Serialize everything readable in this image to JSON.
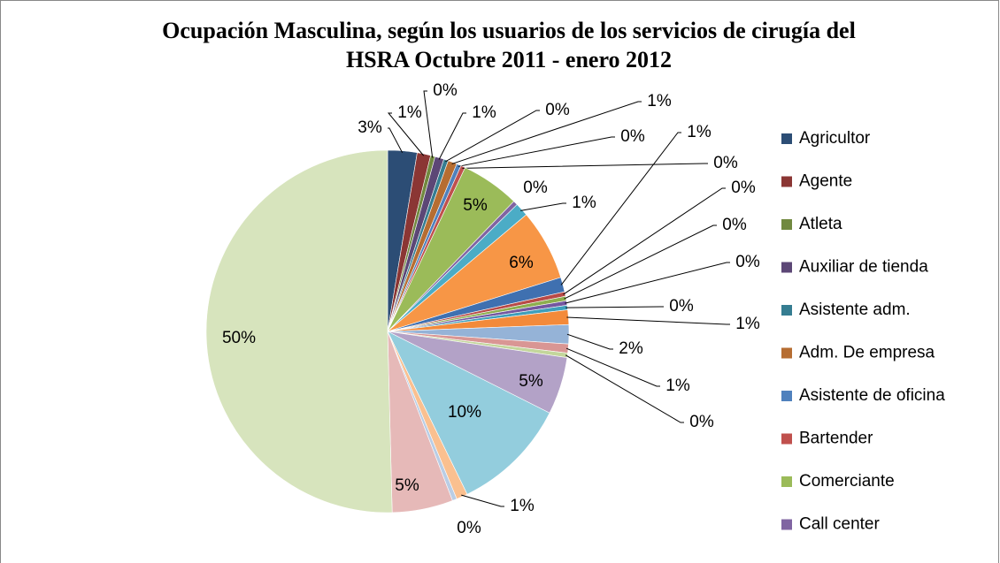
{
  "chart_data": {
    "type": "pie",
    "title": "Ocupación Masculina, según los usuarios de los servicios de cirugía del HSRA Octubre 2011 - enero 2012",
    "categories": [
      "Agricultor",
      "Agente",
      "Atleta",
      "Auxiliar de tienda",
      "Asistente adm.",
      "Adm. De empresa",
      "Asistente de oficina",
      "Bartender",
      "Comerciante",
      "Call center",
      null,
      null,
      null,
      null,
      null,
      null,
      null,
      null,
      null,
      null,
      null,
      null,
      null,
      null,
      null,
      null,
      null
    ],
    "values": [
      2.6,
      1.2,
      0.4,
      0.8,
      0.4,
      0.8,
      0.4,
      0.4,
      5.2,
      0.4,
      1.2,
      6.3,
      1.3,
      0.4,
      0.4,
      0.4,
      0.4,
      1.3,
      1.7,
      0.8,
      0.4,
      5.1,
      10.3,
      1.0,
      0.4,
      5.4,
      50.2
    ],
    "value_labels": [
      "3%",
      "1%",
      "0%",
      "1%",
      "0%",
      "1%",
      "0%",
      "0%",
      "5%",
      "0%",
      "1%",
      "6%",
      "1%",
      "0%",
      "0%",
      "0%",
      "0%",
      "1%",
      "2%",
      "1%",
      "0%",
      "5%",
      "10%",
      "1%",
      "0%",
      "5%",
      "50%"
    ],
    "colors": [
      "#2C4D75",
      "#8B3634",
      "#71893F",
      "#5C4776",
      "#357D91",
      "#B66D31",
      "#4F81BD",
      "#C0504D",
      "#9BBB59",
      "#8064A2",
      "#4BACC6",
      "#F79646",
      "#3F70B0",
      "#B84A47",
      "#8DAE4E",
      "#7457A0",
      "#3E9FBB",
      "#F38A3A",
      "#95B3D7",
      "#D99694",
      "#C3D69B",
      "#B3A2C7",
      "#93CDDD",
      "#FAC090",
      "#B9CDE5",
      "#E6B9B8",
      "#D7E4BD"
    ],
    "legend": "right"
  }
}
